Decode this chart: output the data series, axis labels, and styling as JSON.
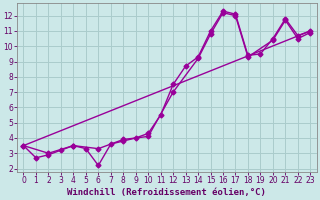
{
  "background_color": "#cce8e8",
  "grid_color": "#aacccc",
  "line_color": "#990099",
  "marker_style": "D",
  "marker_size": 2.5,
  "line_width": 1.0,
  "xlabel": "Windchill (Refroidissement éolien,°C)",
  "xlabel_fontsize": 6.5,
  "xlabel_color": "#660066",
  "tick_color": "#660066",
  "tick_fontsize": 5.5,
  "xlim": [
    -0.5,
    23.5
  ],
  "ylim": [
    1.8,
    12.8
  ],
  "yticks": [
    2,
    3,
    4,
    5,
    6,
    7,
    8,
    9,
    10,
    11,
    12
  ],
  "xticks": [
    0,
    1,
    2,
    3,
    4,
    5,
    6,
    7,
    8,
    9,
    10,
    11,
    12,
    13,
    14,
    15,
    16,
    17,
    18,
    19,
    20,
    21,
    22,
    23
  ],
  "line1_x": [
    0,
    1,
    2,
    3,
    4,
    5,
    6,
    7,
    8,
    9,
    10,
    11,
    12,
    13,
    14,
    15,
    16,
    17,
    18,
    19,
    20,
    21,
    22,
    23
  ],
  "line1_y": [
    3.5,
    2.7,
    2.9,
    3.2,
    3.5,
    3.3,
    2.2,
    3.6,
    3.8,
    4.0,
    4.3,
    5.5,
    7.5,
    8.7,
    9.3,
    11.0,
    12.3,
    12.1,
    9.4,
    9.5,
    10.5,
    11.8,
    10.7,
    11.0
  ],
  "line2_x": [
    0,
    2,
    4,
    6,
    8,
    10,
    12,
    14,
    15,
    16,
    17,
    18,
    20,
    21,
    22,
    23
  ],
  "line2_y": [
    3.5,
    3.0,
    3.5,
    3.3,
    3.9,
    4.1,
    7.0,
    9.2,
    10.8,
    12.2,
    12.0,
    9.3,
    10.4,
    11.7,
    10.5,
    10.9
  ],
  "line3_x": [
    0,
    23
  ],
  "line3_y": [
    3.5,
    11.0
  ]
}
